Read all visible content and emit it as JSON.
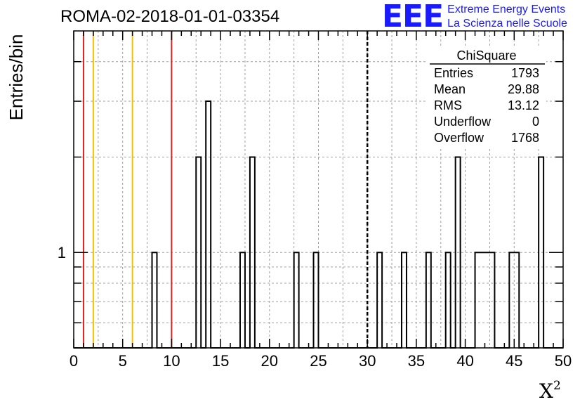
{
  "title": "ROMA-02-2018-01-01-03354",
  "logo": {
    "mark": "EEE",
    "line1": "Extreme Energy Events",
    "line2": "La Scienza nelle Scuole"
  },
  "colors": {
    "histogram": "#000000",
    "red_line": "#e0201c",
    "yellow_line": "#f5c000",
    "grid": "#a0a0a0",
    "logo": "#1a1aff"
  },
  "stats": {
    "title": "ChiSquare",
    "rows": [
      {
        "label": "Entries",
        "value": "1793"
      },
      {
        "label": "Mean",
        "value": "29.88"
      },
      {
        "label": "RMS",
        "value": "13.12"
      },
      {
        "label": "Underflow",
        "value": "0"
      },
      {
        "label": "Overflow",
        "value": "1768"
      }
    ]
  },
  "chart_data": {
    "type": "bar",
    "subtype": "histogram",
    "xlabel": "X",
    "xlabel_superscript": "2",
    "ylabel": "Entries/bin",
    "xlim": [
      0,
      50
    ],
    "ylim": [
      0.5,
      5
    ],
    "yscale": "log",
    "grid": true,
    "xticks": [
      0,
      5,
      10,
      15,
      20,
      25,
      30,
      35,
      40,
      45,
      50
    ],
    "yticks": [
      1
    ],
    "bin_width": 0.5,
    "bins": [
      {
        "x": 8,
        "count": 1
      },
      {
        "x": 12.5,
        "count": 2
      },
      {
        "x": 13.5,
        "count": 3
      },
      {
        "x": 17,
        "count": 1
      },
      {
        "x": 18,
        "count": 2
      },
      {
        "x": 22.5,
        "count": 1
      },
      {
        "x": 24.5,
        "count": 1
      },
      {
        "x": 31,
        "count": 1
      },
      {
        "x": 33.5,
        "count": 1
      },
      {
        "x": 36,
        "count": 1
      },
      {
        "x": 38,
        "count": 1
      },
      {
        "x": 39,
        "count": 2
      },
      {
        "x": 41,
        "count": 1
      },
      {
        "x": 41.5,
        "count": 1
      },
      {
        "x": 42,
        "count": 1
      },
      {
        "x": 42.5,
        "count": 1
      },
      {
        "x": 44.5,
        "count": 1
      },
      {
        "x": 45,
        "count": 1
      },
      {
        "x": 47.5,
        "count": 2
      }
    ],
    "vertical_lines": [
      {
        "x": 1,
        "color": "red",
        "style": "solid"
      },
      {
        "x": 2,
        "color": "yellow",
        "style": "solid"
      },
      {
        "x": 6,
        "color": "yellow",
        "style": "solid"
      },
      {
        "x": 10,
        "color": "red",
        "style": "solid"
      },
      {
        "x": 30,
        "color": "black",
        "style": "dashed"
      }
    ]
  }
}
